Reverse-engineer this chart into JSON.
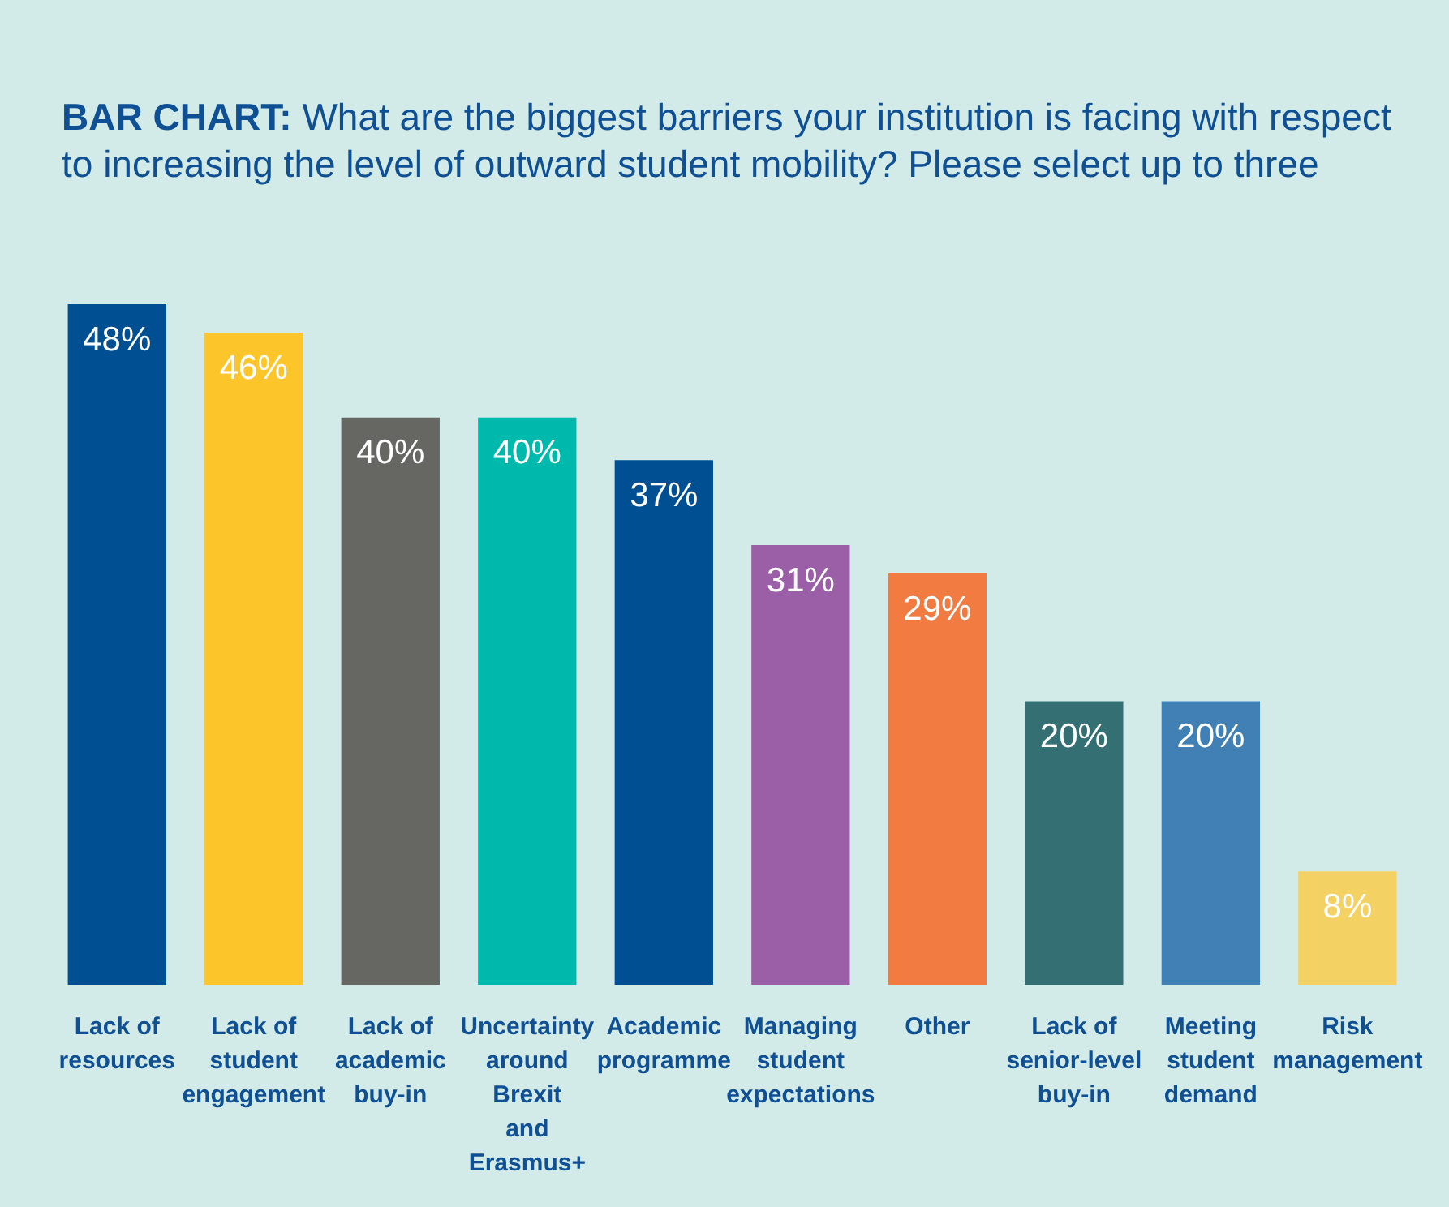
{
  "chart_data": {
    "type": "bar",
    "title": "BAR CHART: What are the biggest barriers your institution is facing with respect to increasing the level of outward student mobility? Please select up to three",
    "categories": [
      "Lack of resources",
      "Lack of student engagement",
      "Lack of academic buy-in",
      "Uncertainty around Brexit and Erasmus+",
      "Academic programme",
      "Managing student expectations",
      "Other",
      "Lack of senior-level buy-in",
      "Meeting student demand",
      "Risk management"
    ],
    "values": [
      48,
      46,
      40,
      40,
      37,
      31,
      29,
      20,
      20,
      8
    ],
    "colors": [
      "#004f93",
      "#fcc62b",
      "#666663",
      "#00b9ad",
      "#004f93",
      "#9b5fa7",
      "#f27b42",
      "#336f73",
      "#4080b4",
      "#f3d263"
    ],
    "value_labels": [
      "48%",
      "46%",
      "40%",
      "40%",
      "37%",
      "31%",
      "29%",
      "20%",
      "20%",
      "8%"
    ],
    "grid": false,
    "legend": false
  }
}
